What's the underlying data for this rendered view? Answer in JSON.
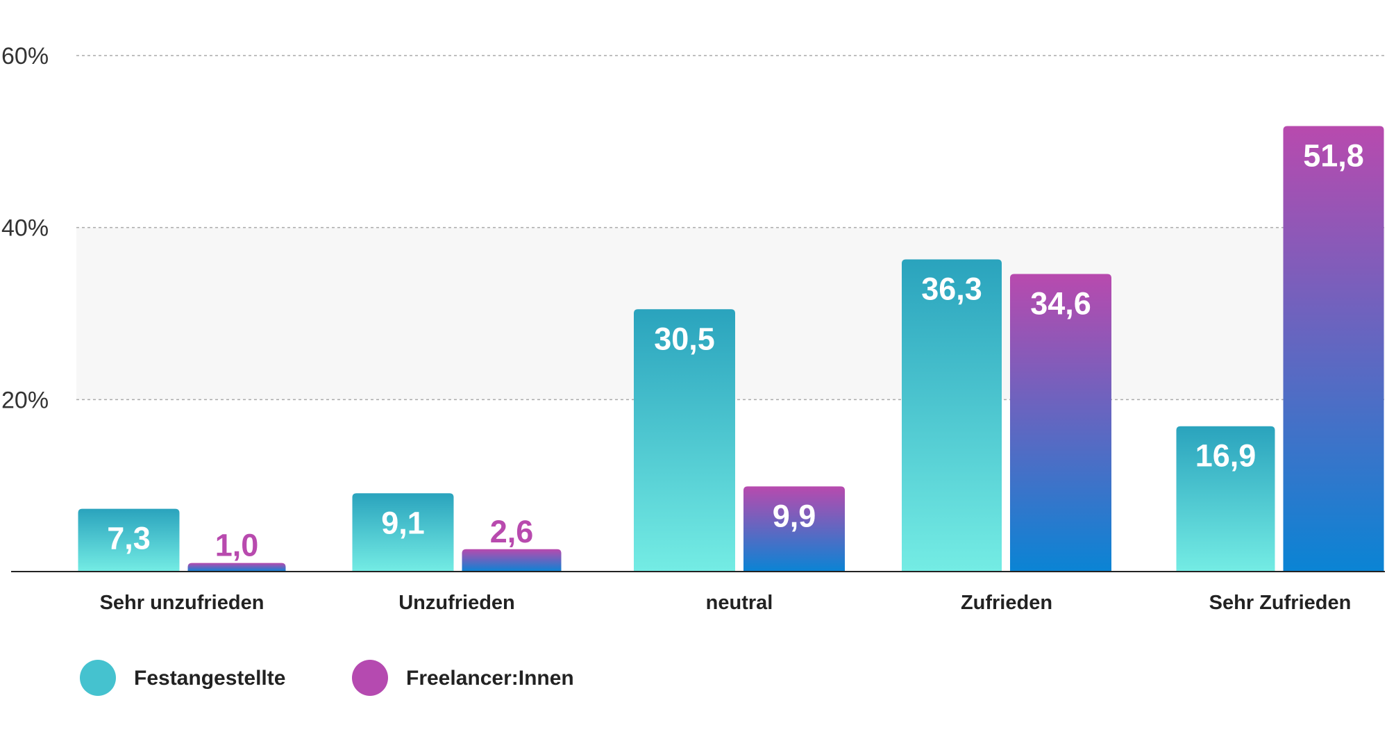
{
  "chart_data": {
    "type": "bar",
    "categories": [
      "Sehr unzufrieden",
      "Unzufrieden",
      "neutral",
      "Zufrieden",
      "Sehr Zufrieden"
    ],
    "series": [
      {
        "name": "Festangestellte",
        "values": [
          7.3,
          9.1,
          30.5,
          36.3,
          16.9
        ],
        "labels": [
          "7,3",
          "9,1",
          "30,5",
          "36,3",
          "16,9"
        ]
      },
      {
        "name": "Freelancer:Innen",
        "values": [
          1.0,
          2.6,
          9.9,
          34.6,
          51.8
        ],
        "labels": [
          "1,0",
          "2,6",
          "9,9",
          "34,6",
          "51,8"
        ]
      }
    ],
    "yticks": [
      {
        "value": 20,
        "label": "20%"
      },
      {
        "value": 40,
        "label": "40%"
      },
      {
        "value": 60,
        "label": "60%"
      }
    ],
    "ylim": [
      0,
      60
    ],
    "grid": true,
    "shaded_band": [
      20,
      40
    ],
    "legend": "bottom-left",
    "colors": {
      "festangestellte_top": "#2aa3bd",
      "festangestellte_bottom": "#74ece4",
      "freelancer_top": "#b84aae",
      "freelancer_bottom": "#0a84d4",
      "legend_festangestellte": "#45c2cf",
      "legend_freelancer": "#b54ab0",
      "gridline": "#aaaaaa",
      "band": "#f7f7f7",
      "axis": "#222222"
    }
  }
}
